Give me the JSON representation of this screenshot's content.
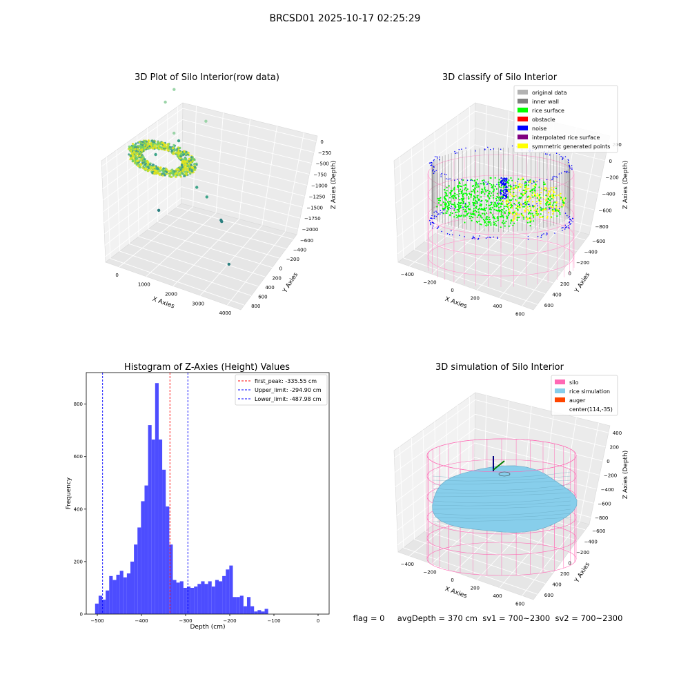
{
  "suptitle": "BRCSD01 2025-10-17 02:25:29",
  "footer": "flag = 0     avgDepth = 370 cm  sv1 = 700~2300  sv2 = 700~2300",
  "chart_data": [
    {
      "type": "scatter",
      "panel": "raw",
      "title": "3D Plot of Silo Interior(row data)",
      "xlabel": "X Axies",
      "ylabel": "Y Axies",
      "zlabel": "Z Axies (Depth)",
      "x_ticks": [
        "0",
        "1000",
        "2000",
        "3000",
        "4000"
      ],
      "y_ticks": [
        "800",
        "600",
        "400",
        "200",
        "0",
        "−200",
        "−400",
        "−600"
      ],
      "z_ticks": [
        "0",
        "−250",
        "−500",
        "−750",
        "−1000",
        "−1250",
        "−1500",
        "−1750",
        "−2000"
      ],
      "xlim": [
        -500,
        4500
      ],
      "ylim": [
        -700,
        900
      ],
      "zlim": [
        -2100,
        100
      ],
      "colormap": [
        "#3b9a8c",
        "#6fce6b",
        "#c8e02c",
        "#e6e419"
      ],
      "outlier_points": [
        {
          "x": 1300,
          "y": 700,
          "z": -150
        },
        {
          "x": 1000,
          "y": 650,
          "z": -400
        },
        {
          "x": 1400,
          "y": 500,
          "z": -750
        },
        {
          "x": 1600,
          "y": 450,
          "z": -800
        },
        {
          "x": 2500,
          "y": 650,
          "z": -500
        },
        {
          "x": 800,
          "y": 350,
          "z": -1100
        },
        {
          "x": 900,
          "y": 300,
          "z": -1300
        },
        {
          "x": 2400,
          "y": 200,
          "z": -1250
        },
        {
          "x": 2800,
          "y": 150,
          "z": -1300
        },
        {
          "x": 1100,
          "y": 0,
          "z": -1700
        },
        {
          "x": 3400,
          "y": 0,
          "z": -1450
        },
        {
          "x": 3400,
          "y": 50,
          "z": -1550
        },
        {
          "x": 3800,
          "y": -200,
          "z": -2000
        }
      ]
    },
    {
      "type": "scatter",
      "panel": "classify",
      "title": "3D classify of Silo Interior",
      "xlabel": "X Axies",
      "ylabel": "Y Axies",
      "zlabel": "Z Axies (Depth)",
      "x_ticks": [
        "−400",
        "−200",
        "0",
        "200",
        "400",
        "600"
      ],
      "y_ticks": [
        "600",
        "400",
        "200",
        "0",
        "−200",
        "−400",
        "−600"
      ],
      "z_ticks": [
        "200",
        "0",
        "−200",
        "−400",
        "−600",
        "−800"
      ],
      "legend_position": "upper-right",
      "legend": [
        {
          "label": "original data",
          "color": "#b3b3b3"
        },
        {
          "label": "inner wall",
          "color": "#808080"
        },
        {
          "label": "rice surface",
          "color": "#00ff00"
        },
        {
          "label": "obstacle",
          "color": "#ff0000"
        },
        {
          "label": "noise",
          "color": "#0000ff"
        },
        {
          "label": "interpolated rice surface",
          "color": "#800080"
        },
        {
          "label": "symmetric generated points",
          "color": "#ffff00"
        }
      ],
      "silo_color": "#ff99cc"
    },
    {
      "type": "bar",
      "panel": "histogram",
      "title": "Histogram of Z-Axies (Height) Values",
      "xlabel": "Depth (cm)",
      "ylabel": "Frequency",
      "xlim": [
        -525,
        25
      ],
      "ylim": [
        0,
        920
      ],
      "x_ticks": [
        -500,
        -400,
        -300,
        -200,
        -100,
        0
      ],
      "y_ticks": [
        0,
        200,
        400,
        600,
        800
      ],
      "bin_start": -505,
      "bin_width": 8,
      "values": [
        40,
        70,
        55,
        90,
        145,
        130,
        150,
        165,
        140,
        155,
        200,
        265,
        330,
        430,
        490,
        720,
        665,
        880,
        665,
        550,
        410,
        265,
        130,
        120,
        125,
        100,
        105,
        100,
        105,
        115,
        125,
        115,
        125,
        105,
        130,
        125,
        145,
        170,
        185,
        65,
        65,
        70,
        30,
        65,
        30,
        10,
        15,
        10,
        20
      ],
      "bar_color": "#4d4dff",
      "legend_position": "upper-right",
      "lines": [
        {
          "label": "first_peak: -335.55 cm",
          "value": -335.55,
          "color": "#ff0000"
        },
        {
          "label": "Upper_limit: -294.90 cm",
          "value": -294.9,
          "color": "#0000ff"
        },
        {
          "label": "Lower_limit: -487.98 cm",
          "value": -487.98,
          "color": "#0000ff"
        }
      ]
    },
    {
      "type": "scatter",
      "panel": "simulation",
      "title": "3D simulation of Silo Interior",
      "xlabel": "X Axies",
      "ylabel": "Y Axies",
      "zlabel": "Z Axies (Depth)",
      "x_ticks": [
        "−400",
        "−200",
        "0",
        "200",
        "400",
        "600"
      ],
      "y_ticks": [
        "600",
        "400",
        "200",
        "0",
        "−200",
        "−400",
        "−600"
      ],
      "z_ticks": [
        "400",
        "200",
        "0",
        "−200",
        "−400",
        "−600",
        "−800"
      ],
      "legend_position": "upper-right",
      "legend": [
        {
          "label": "silo",
          "color": "#ff69b4"
        },
        {
          "label": "rice simulation",
          "color": "#87ceeb"
        },
        {
          "label": "auger",
          "color": "#ff4500"
        },
        {
          "label": "center(114,-35)",
          "color": ""
        }
      ],
      "surface_color": "#87ceeb",
      "silo_color": "#ff69b4"
    }
  ]
}
